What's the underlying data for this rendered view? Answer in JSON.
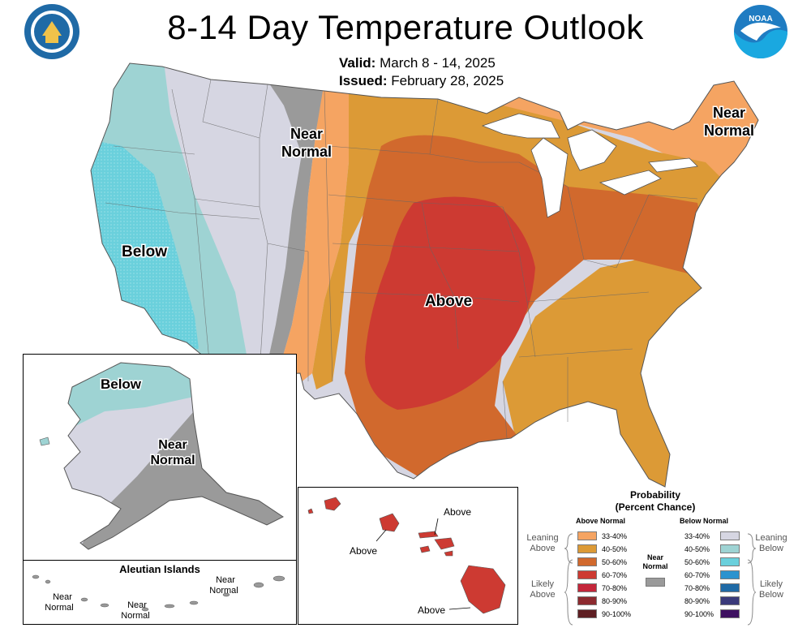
{
  "title": "8-14 Day Temperature Outlook",
  "valid_label": "Valid:",
  "valid_value": "March 8 - 14, 2025",
  "issued_label": "Issued:",
  "issued_value": "February 28, 2025",
  "logos": {
    "left": "Department of Commerce seal",
    "right_text": "NOAA"
  },
  "conus_labels": {
    "below": "Below",
    "above": "Above",
    "near_normal_west_line1": "Near",
    "near_normal_west_line2": "Normal",
    "near_normal_ne_line1": "Near",
    "near_normal_ne_line2": "Normal"
  },
  "alaska_labels": {
    "below": "Below",
    "near_line1": "Near",
    "near_line2": "Normal"
  },
  "aleutian": {
    "title": "Aleutian Islands",
    "near_a_line1": "Near",
    "near_a_line2": "Normal",
    "near_b_line1": "Near",
    "near_b_line2": "Normal",
    "near_c_line1": "Near",
    "near_c_line2": "Normal"
  },
  "hawaii_labels": {
    "above_1": "Above",
    "above_2": "Above",
    "above_3": "Above"
  },
  "legend": {
    "title_line1": "Probability",
    "title_line2": "(Percent Chance)",
    "above_header": "Above Normal",
    "below_header": "Below Normal",
    "near_line1": "Near",
    "near_line2": "Normal",
    "leaning_above_1": "Leaning",
    "leaning_above_2": "Above",
    "likely_above_1": "Likely",
    "likely_above_2": "Above",
    "leaning_below_1": "Leaning",
    "leaning_below_2": "Below",
    "likely_below_1": "Likely",
    "likely_below_2": "Below",
    "above_bins": [
      {
        "label": "33-40%",
        "color": "#f5a462"
      },
      {
        "label": "40-50%",
        "color": "#dc9a36"
      },
      {
        "label": "50-60%",
        "color": "#d1692d"
      },
      {
        "label": "60-70%",
        "color": "#cd3a32"
      },
      {
        "label": "70-80%",
        "color": "#c4263a"
      },
      {
        "label": "80-90%",
        "color": "#8c2a2f"
      },
      {
        "label": "90-100%",
        "color": "#5e1e22"
      }
    ],
    "below_bins": [
      {
        "label": "33-40%",
        "color": "#d6d6e2"
      },
      {
        "label": "40-50%",
        "color": "#9ed3d3"
      },
      {
        "label": "50-60%",
        "color": "#6ad0dc"
      },
      {
        "label": "60-70%",
        "color": "#2c93cf"
      },
      {
        "label": "70-80%",
        "color": "#1f6aa6"
      },
      {
        "label": "80-90%",
        "color": "#3a3a7a"
      },
      {
        "label": "90-100%",
        "color": "#3e1060"
      }
    ],
    "near_color": "#9a9a9a"
  }
}
